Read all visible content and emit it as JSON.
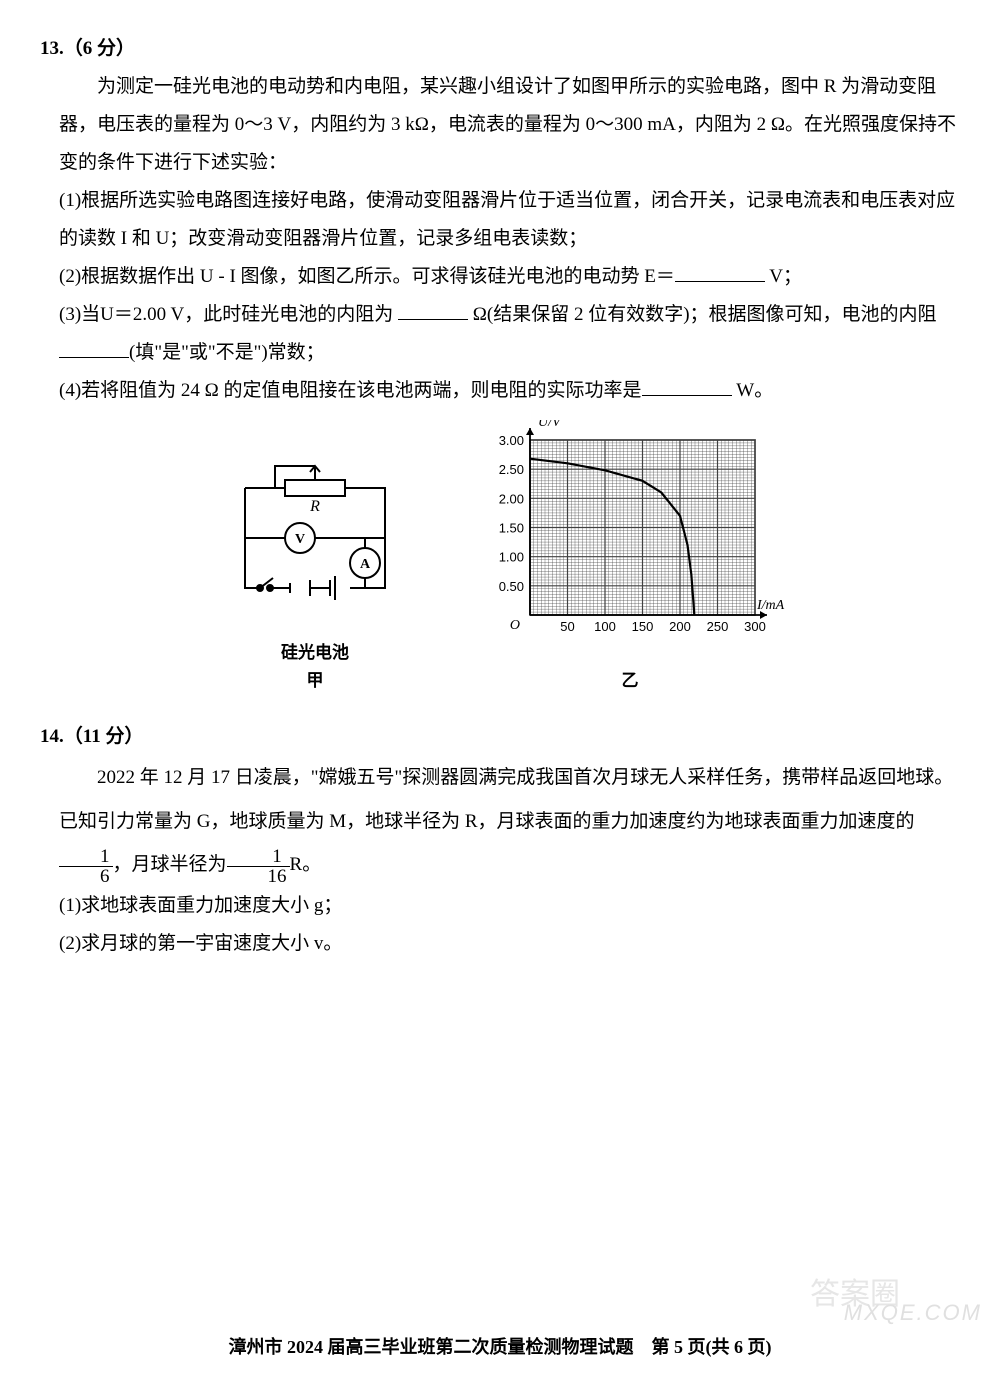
{
  "q13": {
    "header": "13.（6 分）",
    "p1": "为测定一硅光电池的电动势和内电阻，某兴趣小组设计了如图甲所示的实验电路，图中 R 为滑动变阻器，电压表的量程为 0～3 V，内阻约为 3 kΩ，电流表的量程为 0～300 mA，内阻为 2 Ω。在光照强度保持不变的条件下进行下述实验：",
    "p2": "(1)根据所选实验电路图连接好电路，使滑动变阻器滑片位于适当位置，闭合开关，记录电流表和电压表对应的读数 I 和 U；改变滑动变阻器滑片位置，记录多组电表读数；",
    "p3a": "(2)根据数据作出 U - I 图像，如图乙所示。可求得该硅光电池的电动势 E＝",
    "p3b": " V；",
    "p4a": "(3)当U＝2.00 V，此时硅光电池的内阻为 ",
    "p4b": " Ω(结果保留 2 位有效数字)；根据图像可知，电池的内阻",
    "p4c": "(填\"是\"或\"不是\")常数；",
    "p5a": "(4)若将阻值为 24 Ω 的定值电阻接在该电池两端，则电阻的实际功率是",
    "p5b": " W。",
    "circuit_label_R": "R",
    "circuit_label_V": "V",
    "circuit_label_A": "A",
    "circuit_caption1": "硅光电池",
    "circuit_caption2": "甲",
    "graph": {
      "ylabel": "U/V",
      "xlabel": "I/mA",
      "origin": "O",
      "yticks": [
        "0.50",
        "1.00",
        "1.50",
        "2.00",
        "2.50",
        "3.00"
      ],
      "xticks": [
        "50",
        "100",
        "150",
        "200",
        "250",
        "300"
      ],
      "xlim": [
        0,
        300
      ],
      "ylim": [
        0,
        3.0
      ],
      "curve_pts": [
        [
          0,
          2.68
        ],
        [
          50,
          2.6
        ],
        [
          100,
          2.48
        ],
        [
          150,
          2.3
        ],
        [
          175,
          2.1
        ],
        [
          200,
          1.7
        ],
        [
          210,
          1.2
        ],
        [
          215,
          0.7
        ],
        [
          218,
          0.2
        ],
        [
          219,
          0
        ]
      ],
      "hatch_color": "#404040",
      "axis_color": "#000000",
      "caption": "乙"
    }
  },
  "q14": {
    "header": "14.（11 分）",
    "p1a": "2022 年 12 月 17 日凌晨，\"嫦娥五号\"探测器圆满完成我国首次月球无人采样任务，携带样品返回地球。已知引力常量为 G，地球质量为 M，地球半径为 R，月球表面的重力加速度约为地球表面重力加速度的",
    "p1b": "，月球半径为",
    "p1c": "R。",
    "s1": "(1)求地球表面重力加速度大小 g；",
    "s2": "(2)求月球的第一宇宙速度大小 v。"
  },
  "footer": "漳州市 2024 届高三毕业班第二次质量检测物理试题　第 5 页(共 6 页)",
  "watermark": "MXQE.COM",
  "wm2": "答案圈"
}
